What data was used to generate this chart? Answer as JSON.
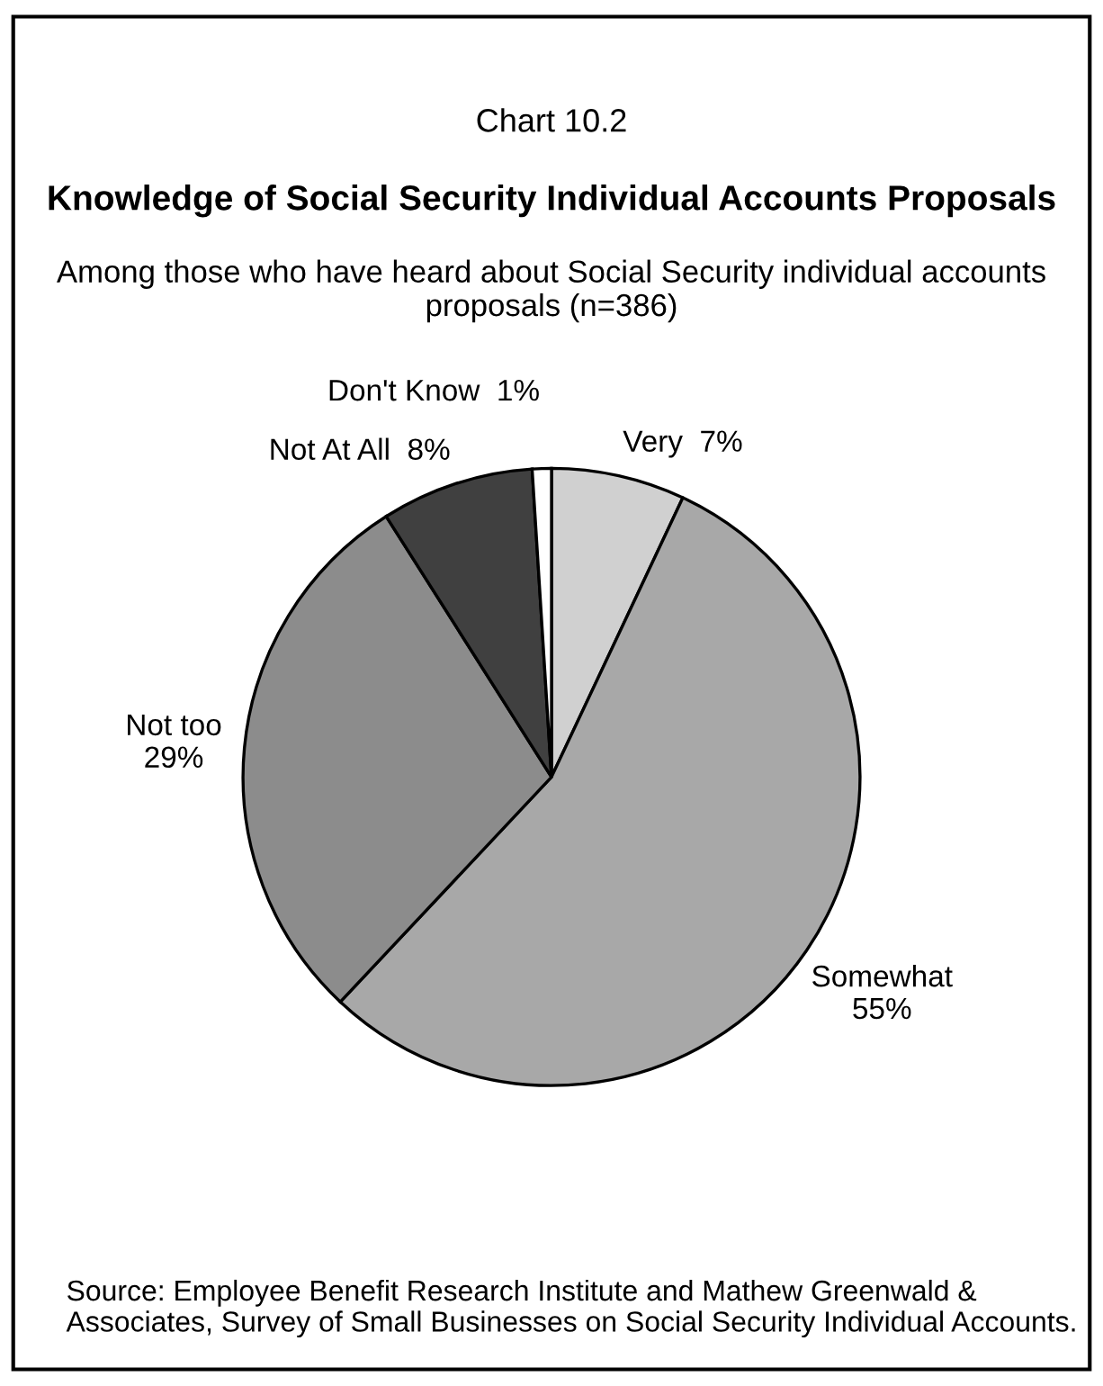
{
  "chart_data": {
    "type": "pie",
    "title": "Knowledge of Social Security Individual Accounts Proposals",
    "subtitle": "Among those who have heard about Social Security individual accounts proposals (n=386)",
    "annotations": [
      "Chart 10.2",
      "Source: Employee Benefit Research Institute and Mathew Greenwald & Associates, Survey of Small Businesses on Social Security Individual Accounts."
    ],
    "categories": [
      "Very",
      "Somewhat",
      "Not too",
      "Not At All",
      "Don't Know"
    ],
    "values": [
      7,
      55,
      29,
      8,
      1
    ],
    "value_labels": [
      "7%",
      "55%",
      "29%",
      "8%",
      "1%"
    ],
    "colors": [
      "#d0d0d0",
      "#a8a8a8",
      "#8c8c8c",
      "#404040",
      "#ffffff"
    ],
    "legend": false
  }
}
